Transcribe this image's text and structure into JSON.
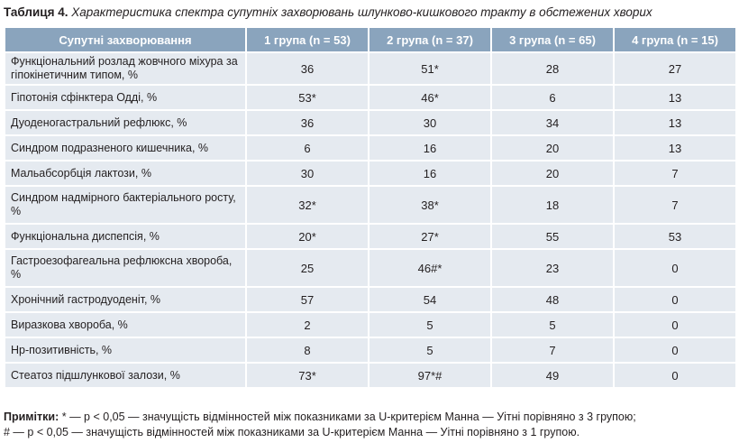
{
  "caption": {
    "label": "Таблиця 4.",
    "text": "Характеристика спектра супутніх захворювань шлунково-кишкового тракту в обстежених хворих"
  },
  "table": {
    "headers": [
      "Супутні захворювання",
      "1 група (n = 53)",
      "2 група (n = 37)",
      "3 група (n = 65)",
      "4 група (n = 15)"
    ],
    "rows": [
      [
        "Функціональний розлад жовчного міхура за гіпокінетичним типом, %",
        "36",
        "51*",
        "28",
        "27"
      ],
      [
        "Гіпотонія сфінктера Одді, %",
        "53*",
        "46*",
        "6",
        "13"
      ],
      [
        "Дуоденогастральний рефлюкс, %",
        "36",
        "30",
        "34",
        "13"
      ],
      [
        "Синдром подразненого кишечника, %",
        "6",
        "16",
        "20",
        "13"
      ],
      [
        "Мальабсорбція лактози, %",
        "30",
        "16",
        "20",
        "7"
      ],
      [
        "Синдром надмірного бактеріального росту, %",
        "32*",
        "38*",
        "18",
        "7"
      ],
      [
        "Функціональна диспепсія, %",
        "20*",
        "27*",
        "55",
        "53"
      ],
      [
        "Гастроезофагеальна рефлюксна хвороба, %",
        "25",
        "46#*",
        "23",
        "0"
      ],
      [
        "Хронічний гастродуоденіт, %",
        "57",
        "54",
        "48",
        "0"
      ],
      [
        "Виразкова хвороба, %",
        "2",
        "5",
        "5",
        "0"
      ],
      [
        "Hp-позитивність, %",
        "8",
        "5",
        "7",
        "0"
      ],
      [
        "Стеатоз підшлункової залози, %",
        "73*",
        "97*#",
        "49",
        "0"
      ]
    ]
  },
  "notes": {
    "label": "Примітки:",
    "line1": "* — p < 0,05 — значущість відмінностей між показниками за U-критерієм Манна — Уітні порівняно з 3 групою;",
    "line2": "# — p < 0,05 — значущість відмінностей між показниками за U-критерієм Манна — Уітні порівняно з 1 групою."
  }
}
